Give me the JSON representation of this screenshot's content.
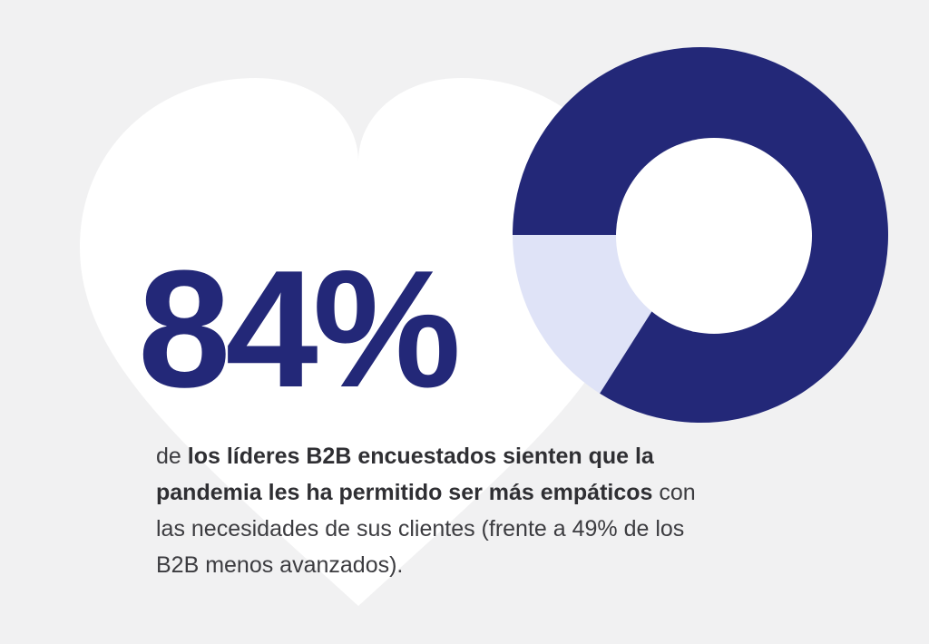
{
  "stat": {
    "value": "84%"
  },
  "description": {
    "prefix": "de ",
    "bold": "los líderes B2B encuestados sienten que la pandemia les ha permitido ser más empáticos",
    "suffix": " con las necesidades de sus clientes (frente a 49% de los B2B menos avanzados)."
  },
  "chart_data": {
    "type": "pie",
    "subtype": "donut",
    "values": [
      84,
      16
    ],
    "annotation": "84%",
    "start_angle_deg": 270,
    "direction": "clockwise",
    "segment_colors": [
      "#232878",
      "#dfe3f7"
    ],
    "hole_color": "#ffffff",
    "legend": "none",
    "axis": "none"
  },
  "colors": {
    "background": "#f1f1f2",
    "heart": "#ffffff",
    "accent_navy": "#232878",
    "accent_lavender": "#dfe3f7",
    "text_regular": "#3c3c40",
    "text_bold": "#2f2f33"
  }
}
